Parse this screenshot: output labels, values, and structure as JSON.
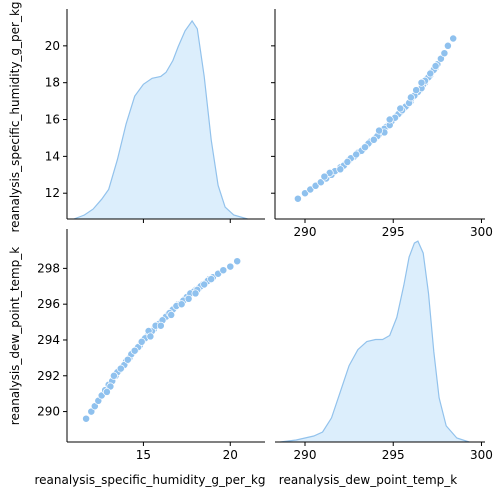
{
  "chart_data": {
    "type": "pairplot",
    "variables": [
      "reanalysis_specific_humidity_g_per_kg",
      "reanalysis_dew_point_temp_k"
    ],
    "colors": {
      "line": "#92c2ec",
      "fill": "#dceefc",
      "point": "#8fc1ee"
    },
    "ranges": {
      "humidity": [
        10.6,
        22.0
      ],
      "dewpoint": [
        288.3,
        300.2
      ]
    },
    "density_ylim": [
      0,
      1.0
    ],
    "ticks": {
      "humidity_y": [
        12,
        14,
        16,
        18,
        20
      ],
      "humidity_x": [
        15,
        20
      ],
      "dewpoint_y": [
        290,
        292,
        294,
        296,
        298
      ],
      "dewpoint_x": [
        290,
        295,
        300
      ]
    },
    "kde_humidity": [
      [
        11.0,
        0.0
      ],
      [
        11.6,
        0.02
      ],
      [
        12.1,
        0.05
      ],
      [
        12.6,
        0.1
      ],
      [
        13.0,
        0.15
      ],
      [
        13.5,
        0.3
      ],
      [
        14.0,
        0.48
      ],
      [
        14.5,
        0.62
      ],
      [
        15.0,
        0.68
      ],
      [
        15.5,
        0.71
      ],
      [
        16.0,
        0.72
      ],
      [
        16.3,
        0.74
      ],
      [
        16.7,
        0.8
      ],
      [
        17.0,
        0.87
      ],
      [
        17.4,
        0.95
      ],
      [
        17.8,
        1.0
      ],
      [
        18.1,
        0.96
      ],
      [
        18.5,
        0.72
      ],
      [
        18.9,
        0.4
      ],
      [
        19.3,
        0.17
      ],
      [
        19.7,
        0.06
      ],
      [
        20.2,
        0.02
      ],
      [
        21.0,
        0.0
      ]
    ],
    "kde_dewpoint": [
      [
        288.6,
        0.0
      ],
      [
        289.5,
        0.01
      ],
      [
        290.0,
        0.02
      ],
      [
        290.5,
        0.03
      ],
      [
        291.0,
        0.05
      ],
      [
        291.5,
        0.12
      ],
      [
        292.0,
        0.25
      ],
      [
        292.5,
        0.38
      ],
      [
        293.0,
        0.46
      ],
      [
        293.5,
        0.5
      ],
      [
        294.0,
        0.51
      ],
      [
        294.4,
        0.51
      ],
      [
        294.8,
        0.53
      ],
      [
        295.2,
        0.62
      ],
      [
        295.6,
        0.78
      ],
      [
        295.9,
        0.92
      ],
      [
        296.2,
        0.99
      ],
      [
        296.4,
        1.0
      ],
      [
        296.7,
        0.94
      ],
      [
        297.0,
        0.74
      ],
      [
        297.3,
        0.45
      ],
      [
        297.6,
        0.22
      ],
      [
        298.0,
        0.08
      ],
      [
        298.6,
        0.02
      ],
      [
        299.3,
        0.0
      ]
    ],
    "scatter": [
      [
        11.7,
        289.6
      ],
      [
        12.0,
        290.0
      ],
      [
        12.2,
        290.3
      ],
      [
        12.4,
        290.6
      ],
      [
        12.6,
        290.9
      ],
      [
        12.8,
        291.2
      ],
      [
        13.0,
        291.5
      ],
      [
        13.2,
        291.7
      ],
      [
        13.4,
        292.0
      ],
      [
        13.6,
        292.3
      ],
      [
        13.8,
        292.5
      ],
      [
        14.0,
        292.8
      ],
      [
        14.2,
        293.0
      ],
      [
        14.4,
        293.3
      ],
      [
        14.6,
        293.5
      ],
      [
        14.8,
        293.7
      ],
      [
        15.0,
        294.0
      ],
      [
        15.2,
        294.2
      ],
      [
        15.4,
        294.4
      ],
      [
        15.6,
        294.6
      ],
      [
        15.8,
        294.8
      ],
      [
        16.0,
        295.0
      ],
      [
        16.2,
        295.2
      ],
      [
        16.4,
        295.4
      ],
      [
        16.6,
        295.6
      ],
      [
        16.8,
        295.8
      ],
      [
        17.0,
        296.0
      ],
      [
        17.2,
        296.1
      ],
      [
        17.4,
        296.3
      ],
      [
        17.6,
        296.5
      ],
      [
        17.8,
        296.6
      ],
      [
        18.0,
        296.8
      ],
      [
        18.2,
        296.9
      ],
      [
        18.4,
        297.1
      ],
      [
        18.6,
        297.2
      ],
      [
        18.8,
        297.4
      ],
      [
        19.0,
        297.5
      ],
      [
        19.3,
        297.7
      ],
      [
        19.6,
        297.9
      ],
      [
        20.0,
        298.1
      ],
      [
        20.4,
        298.4
      ],
      [
        13.1,
        291.4
      ],
      [
        13.5,
        292.2
      ],
      [
        13.9,
        292.6
      ],
      [
        14.3,
        293.2
      ],
      [
        14.7,
        293.6
      ],
      [
        15.1,
        294.1
      ],
      [
        15.5,
        294.5
      ],
      [
        15.9,
        294.9
      ],
      [
        16.3,
        295.3
      ],
      [
        16.7,
        295.7
      ],
      [
        17.1,
        296.0
      ],
      [
        17.5,
        296.4
      ],
      [
        17.9,
        296.7
      ],
      [
        18.3,
        297.0
      ],
      [
        18.7,
        297.3
      ],
      [
        15.3,
        294.5
      ],
      [
        15.7,
        294.8
      ],
      [
        16.1,
        295.1
      ],
      [
        16.5,
        295.5
      ],
      [
        16.9,
        295.9
      ],
      [
        17.3,
        296.2
      ],
      [
        17.7,
        296.6
      ],
      [
        18.1,
        296.8
      ],
      [
        18.5,
        297.1
      ],
      [
        18.9,
        297.4
      ],
      [
        12.9,
        291.1
      ],
      [
        13.3,
        292.0
      ],
      [
        13.7,
        292.4
      ],
      [
        14.1,
        292.9
      ],
      [
        14.5,
        293.4
      ],
      [
        14.9,
        293.9
      ],
      [
        15.4,
        294.2
      ],
      [
        16.0,
        294.8
      ],
      [
        16.6,
        295.4
      ],
      [
        17.2,
        296.0
      ],
      [
        17.6,
        296.3
      ],
      [
        18.0,
        296.6
      ]
    ]
  }
}
